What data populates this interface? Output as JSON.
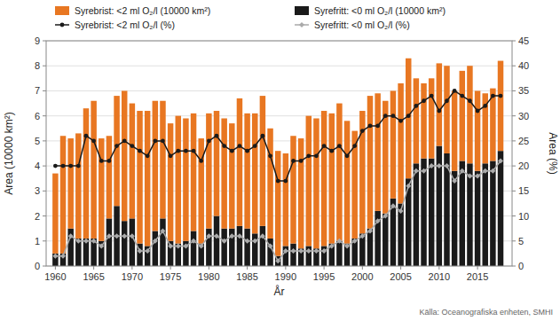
{
  "chart_data": {
    "type": "bar",
    "x": [
      1960,
      1961,
      1962,
      1963,
      1964,
      1965,
      1966,
      1967,
      1968,
      1969,
      1970,
      1971,
      1972,
      1973,
      1974,
      1975,
      1976,
      1977,
      1978,
      1979,
      1980,
      1981,
      1982,
      1983,
      1984,
      1985,
      1986,
      1987,
      1988,
      1989,
      1990,
      1991,
      1992,
      1993,
      1994,
      1995,
      1996,
      1997,
      1998,
      1999,
      2000,
      2001,
      2002,
      2003,
      2004,
      2005,
      2006,
      2007,
      2008,
      2009,
      2010,
      2011,
      2012,
      2013,
      2014,
      2015,
      2016,
      2017,
      2018
    ],
    "xlim": [
      1958.8,
      2019.5
    ],
    "xticks": [
      1960,
      1965,
      1970,
      1975,
      1980,
      1985,
      1990,
      1995,
      2000,
      2005,
      2010,
      2015
    ],
    "ylim": [
      0,
      9
    ],
    "yticks": [
      0,
      1,
      2,
      3,
      4,
      5,
      6,
      7,
      8,
      9
    ],
    "y2lim": [
      0,
      45
    ],
    "y2ticks": [
      0,
      5,
      10,
      15,
      20,
      25,
      30,
      35,
      40,
      45
    ],
    "x_label": "År",
    "y_label": "Area (10000 km²)",
    "y2_label": "Area (%)",
    "stacked": true,
    "grid": true,
    "legend": "top",
    "annotations": [
      {
        "text": "Källa: Oceanografiska enheten, SMHI"
      }
    ],
    "series": [
      {
        "name": "Syrefritt: <0 ml O₂/l (10000 km²)",
        "type": "bar",
        "color": "#1a1a1a",
        "values": [
          0.5,
          0.5,
          1.5,
          1.1,
          1.1,
          1.1,
          1.0,
          1.9,
          2.4,
          1.8,
          1.9,
          0.9,
          0.8,
          1.4,
          1.9,
          1.0,
          0.9,
          1.0,
          1.4,
          0.9,
          1.5,
          2.0,
          1.5,
          1.5,
          1.6,
          1.5,
          1.3,
          1.6,
          1.1,
          0.4,
          0.8,
          0.9,
          0.7,
          0.8,
          0.7,
          0.8,
          0.9,
          1.0,
          0.9,
          1.1,
          1.3,
          1.5,
          2.2,
          2.1,
          2.7,
          2.5,
          3.5,
          4.1,
          4.3,
          4.3,
          4.8,
          4.5,
          3.8,
          4.2,
          4.1,
          3.8,
          4.1,
          4.2,
          4.6
        ]
      },
      {
        "name": "Syrebrist: <2 ml O₂/l (10000 km²)",
        "type": "bar",
        "color": "#E87722",
        "values": [
          3.2,
          4.7,
          3.6,
          4.2,
          5.2,
          5.5,
          4.1,
          3.3,
          4.4,
          5.2,
          4.6,
          5.3,
          5.4,
          5.2,
          4.7,
          4.7,
          5.1,
          4.9,
          4.7,
          4.2,
          4.6,
          4.2,
          4.4,
          4.2,
          5.1,
          4.6,
          4.8,
          5.2,
          4.4,
          4.2,
          3.7,
          4.3,
          4.4,
          5.2,
          5.2,
          5.4,
          5.2,
          5.5,
          4.9,
          4.3,
          4.9,
          5.3,
          4.7,
          4.5,
          4.3,
          4.8,
          4.8,
          3.4,
          3.0,
          3.2,
          3.3,
          3.5,
          3.2,
          3.6,
          3.9,
          3.2,
          2.8,
          2.9,
          3.6
        ]
      },
      {
        "name": "Syrebrist: <2 ml O₂/l (%)",
        "type": "line",
        "axis": "y2",
        "color": "#1a1a1a",
        "marker": "circle",
        "values": [
          20,
          20,
          20,
          20,
          26,
          25,
          21,
          21,
          24,
          25,
          24,
          23,
          22,
          25,
          25,
          22,
          23,
          23,
          23,
          21,
          25,
          26,
          24,
          23,
          24,
          23,
          24,
          26,
          22,
          17,
          17,
          21,
          21,
          22,
          22,
          24,
          23,
          24,
          22,
          24,
          27,
          28,
          28,
          30,
          30,
          29,
          30,
          32,
          33,
          34,
          31,
          33,
          35,
          34,
          33,
          31,
          32,
          34,
          34
        ]
      },
      {
        "name": "Syrefritt: <0 ml O₂/l (%)",
        "type": "line",
        "axis": "y2",
        "color": "#aaaaaa",
        "marker": "diamond",
        "values": [
          2,
          2,
          6,
          5,
          5,
          5,
          4,
          6,
          6,
          6,
          6,
          3,
          3,
          5,
          7,
          4,
          4,
          4,
          5,
          4,
          6,
          6,
          5,
          6,
          6,
          5,
          5,
          6,
          4,
          1,
          3,
          3,
          3,
          3,
          3,
          3,
          4,
          5,
          4,
          5,
          6,
          7,
          9,
          10,
          12,
          11,
          16,
          19,
          19,
          20,
          20,
          20,
          17,
          19,
          18,
          18,
          19,
          19,
          21
        ]
      }
    ]
  }
}
